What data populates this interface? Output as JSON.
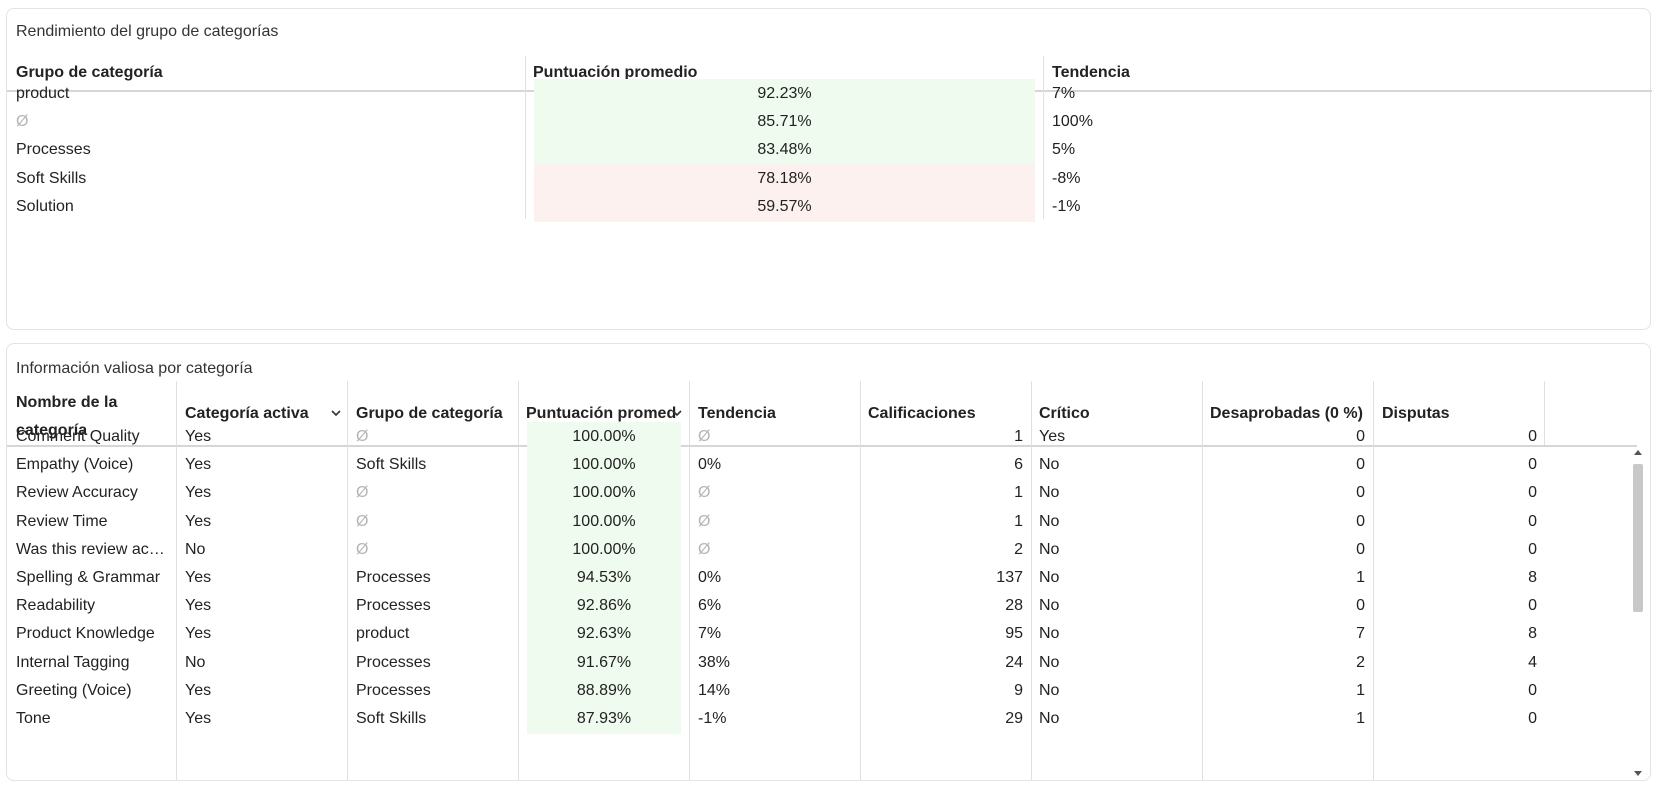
{
  "top": {
    "title": "Rendimiento del grupo de categorías",
    "headers": {
      "group": "Grupo de categoría",
      "score": "Puntuación promedio",
      "trend": "Tendencia"
    },
    "rows": [
      {
        "group": "product",
        "score": "92.23%",
        "trend": "7%"
      },
      {
        "group": "Ø",
        "score": "85.71%",
        "trend": "100%"
      },
      {
        "group": "Processes",
        "score": "83.48%",
        "trend": "5%"
      },
      {
        "group": "Soft Skills",
        "score": "78.18%",
        "trend": "-8%"
      },
      {
        "group": "Solution",
        "score": "59.57%",
        "trend": "-1%"
      }
    ]
  },
  "bottom": {
    "title": "Información valiosa por categoría",
    "headers": {
      "name": "Nombre de la categoría",
      "active": "Categoría activa",
      "group": "Grupo de categoría",
      "score": "Puntuación promed",
      "trend": "Tendencia",
      "ratings": "Calificaciones",
      "critical": "Crítico",
      "disapproved": "Desaprobadas (0 %)",
      "disputes": "Disputas"
    },
    "rows": [
      {
        "name": "Comment Quality",
        "active": "Yes",
        "group": "Ø",
        "score": "100.00%",
        "trend": "Ø",
        "ratings": "1",
        "critical": "Yes",
        "disapproved": "0",
        "disputes": "0"
      },
      {
        "name": "Empathy (Voice)",
        "active": "Yes",
        "group": "Soft Skills",
        "score": "100.00%",
        "trend": "0%",
        "ratings": "6",
        "critical": "No",
        "disapproved": "0",
        "disputes": "0"
      },
      {
        "name": "Review Accuracy",
        "active": "Yes",
        "group": "Ø",
        "score": "100.00%",
        "trend": "Ø",
        "ratings": "1",
        "critical": "No",
        "disapproved": "0",
        "disputes": "0"
      },
      {
        "name": "Review Time",
        "active": "Yes",
        "group": "Ø",
        "score": "100.00%",
        "trend": "Ø",
        "ratings": "1",
        "critical": "No",
        "disapproved": "0",
        "disputes": "0"
      },
      {
        "name": "Was this review ac…",
        "active": "No",
        "group": "Ø",
        "score": "100.00%",
        "trend": "Ø",
        "ratings": "2",
        "critical": "No",
        "disapproved": "0",
        "disputes": "0"
      },
      {
        "name": "Spelling & Grammar",
        "active": "Yes",
        "group": "Processes",
        "score": "94.53%",
        "trend": "0%",
        "ratings": "137",
        "critical": "No",
        "disapproved": "1",
        "disputes": "8"
      },
      {
        "name": "Readability",
        "active": "Yes",
        "group": "Processes",
        "score": "92.86%",
        "trend": "6%",
        "ratings": "28",
        "critical": "No",
        "disapproved": "0",
        "disputes": "0"
      },
      {
        "name": "Product Knowledge",
        "active": "Yes",
        "group": "product",
        "score": "92.63%",
        "trend": "7%",
        "ratings": "95",
        "critical": "No",
        "disapproved": "7",
        "disputes": "8"
      },
      {
        "name": "Internal Tagging",
        "active": "No",
        "group": "Processes",
        "score": "91.67%",
        "trend": "38%",
        "ratings": "24",
        "critical": "No",
        "disapproved": "2",
        "disputes": "4"
      },
      {
        "name": "Greeting (Voice)",
        "active": "Yes",
        "group": "Processes",
        "score": "88.89%",
        "trend": "14%",
        "ratings": "9",
        "critical": "No",
        "disapproved": "1",
        "disputes": "0"
      },
      {
        "name": "Tone",
        "active": "Yes",
        "group": "Soft Skills",
        "score": "87.93%",
        "trend": "-1%",
        "ratings": "29",
        "critical": "No",
        "disapproved": "1",
        "disputes": "0"
      }
    ]
  },
  "colors": {
    "good_bg": "#eefbee",
    "bad_bg": "#fdf1ef",
    "null_text": "#b5b5b5"
  }
}
